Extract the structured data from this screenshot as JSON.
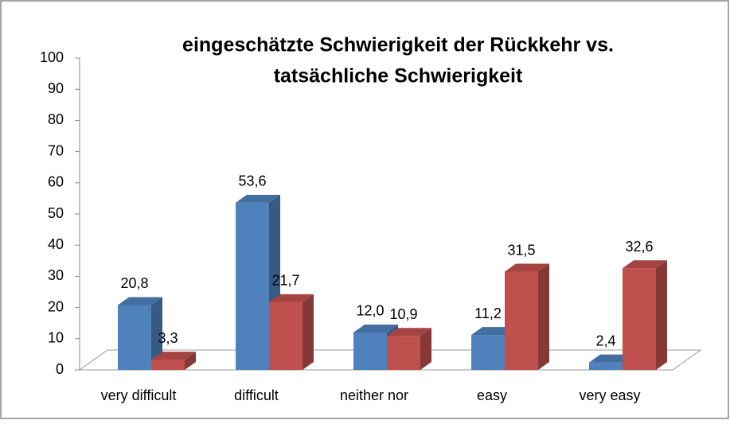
{
  "chart_data": {
    "type": "bar3d",
    "title_lines": [
      "eingeschätzte Schwierigkeit der Rückkehr vs.",
      "tatsächliche Schwierigkeit"
    ],
    "categories": [
      "very difficult",
      "difficult",
      "neither nor",
      "easy",
      "very easy"
    ],
    "series": [
      {
        "color": "#4f81bd",
        "values": [
          20.8,
          53.6,
          12.0,
          11.2,
          2.4
        ],
        "value_labels": [
          "20,8",
          "53,6",
          "12,0",
          "11,2",
          "2,4"
        ]
      },
      {
        "color": "#c0504d",
        "values": [
          3.3,
          21.7,
          10.9,
          31.5,
          32.6
        ],
        "value_labels": [
          "3,3",
          "21,7",
          "10,9",
          "31,5",
          "32,6"
        ]
      }
    ],
    "ylim": [
      0,
      100
    ],
    "yticks": [
      0,
      10,
      20,
      30,
      40,
      50,
      60,
      70,
      80,
      90,
      100
    ],
    "grid": false
  }
}
